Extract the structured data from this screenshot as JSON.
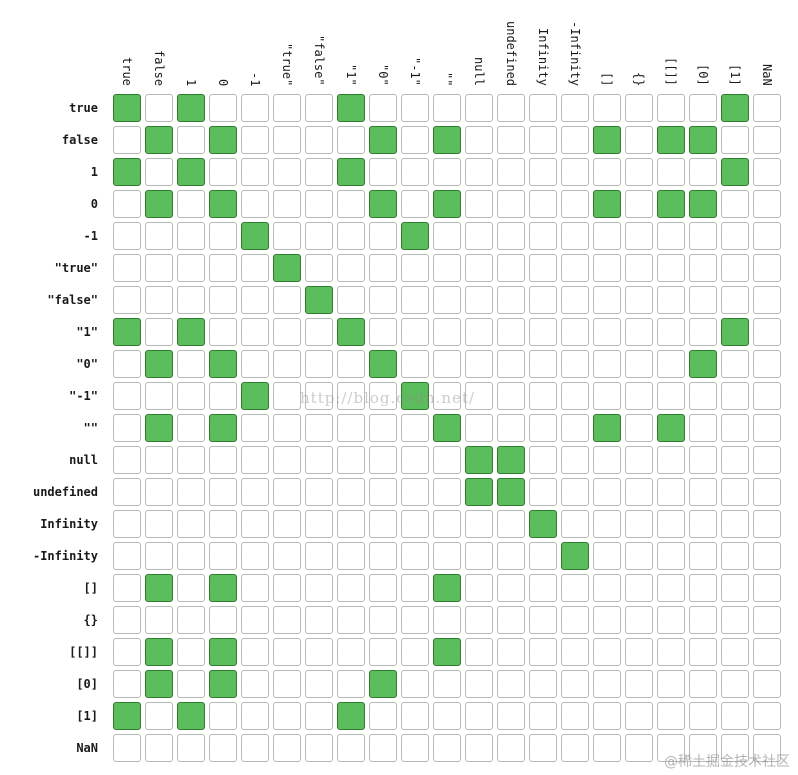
{
  "chart_data": {
    "type": "heatmap",
    "columns": [
      "true",
      "false",
      "1",
      "0",
      "-1",
      "\"true\"",
      "\"false\"",
      "\"1\"",
      "\"0\"",
      "\"-1\"",
      "\"\"",
      "null",
      "undefined",
      "Infinity",
      "-Infinity",
      "[]",
      "{}",
      "[[]]",
      "[0]",
      "[1]",
      "NaN"
    ],
    "rows": [
      "true",
      "false",
      "1",
      "0",
      "-1",
      "\"true\"",
      "\"false\"",
      "\"1\"",
      "\"0\"",
      "\"-1\"",
      "\"\"",
      "null",
      "undefined",
      "Infinity",
      "-Infinity",
      "[]",
      "{}",
      "[[]]",
      "[0]",
      "[1]",
      "NaN"
    ],
    "matrix": [
      [
        1,
        0,
        1,
        0,
        0,
        0,
        0,
        1,
        0,
        0,
        0,
        0,
        0,
        0,
        0,
        0,
        0,
        0,
        0,
        1,
        0
      ],
      [
        0,
        1,
        0,
        1,
        0,
        0,
        0,
        0,
        1,
        0,
        1,
        0,
        0,
        0,
        0,
        1,
        0,
        1,
        1,
        0,
        0
      ],
      [
        1,
        0,
        1,
        0,
        0,
        0,
        0,
        1,
        0,
        0,
        0,
        0,
        0,
        0,
        0,
        0,
        0,
        0,
        0,
        1,
        0
      ],
      [
        0,
        1,
        0,
        1,
        0,
        0,
        0,
        0,
        1,
        0,
        1,
        0,
        0,
        0,
        0,
        1,
        0,
        1,
        1,
        0,
        0
      ],
      [
        0,
        0,
        0,
        0,
        1,
        0,
        0,
        0,
        0,
        1,
        0,
        0,
        0,
        0,
        0,
        0,
        0,
        0,
        0,
        0,
        0
      ],
      [
        0,
        0,
        0,
        0,
        0,
        1,
        0,
        0,
        0,
        0,
        0,
        0,
        0,
        0,
        0,
        0,
        0,
        0,
        0,
        0,
        0
      ],
      [
        0,
        0,
        0,
        0,
        0,
        0,
        1,
        0,
        0,
        0,
        0,
        0,
        0,
        0,
        0,
        0,
        0,
        0,
        0,
        0,
        0
      ],
      [
        1,
        0,
        1,
        0,
        0,
        0,
        0,
        1,
        0,
        0,
        0,
        0,
        0,
        0,
        0,
        0,
        0,
        0,
        0,
        1,
        0
      ],
      [
        0,
        1,
        0,
        1,
        0,
        0,
        0,
        0,
        1,
        0,
        0,
        0,
        0,
        0,
        0,
        0,
        0,
        0,
        1,
        0,
        0
      ],
      [
        0,
        0,
        0,
        0,
        1,
        0,
        0,
        0,
        0,
        1,
        0,
        0,
        0,
        0,
        0,
        0,
        0,
        0,
        0,
        0,
        0
      ],
      [
        0,
        1,
        0,
        1,
        0,
        0,
        0,
        0,
        0,
        0,
        1,
        0,
        0,
        0,
        0,
        1,
        0,
        1,
        0,
        0,
        0
      ],
      [
        0,
        0,
        0,
        0,
        0,
        0,
        0,
        0,
        0,
        0,
        0,
        1,
        1,
        0,
        0,
        0,
        0,
        0,
        0,
        0,
        0
      ],
      [
        0,
        0,
        0,
        0,
        0,
        0,
        0,
        0,
        0,
        0,
        0,
        1,
        1,
        0,
        0,
        0,
        0,
        0,
        0,
        0,
        0
      ],
      [
        0,
        0,
        0,
        0,
        0,
        0,
        0,
        0,
        0,
        0,
        0,
        0,
        0,
        1,
        0,
        0,
        0,
        0,
        0,
        0,
        0
      ],
      [
        0,
        0,
        0,
        0,
        0,
        0,
        0,
        0,
        0,
        0,
        0,
        0,
        0,
        0,
        1,
        0,
        0,
        0,
        0,
        0,
        0
      ],
      [
        0,
        1,
        0,
        1,
        0,
        0,
        0,
        0,
        0,
        0,
        1,
        0,
        0,
        0,
        0,
        0,
        0,
        0,
        0,
        0,
        0
      ],
      [
        0,
        0,
        0,
        0,
        0,
        0,
        0,
        0,
        0,
        0,
        0,
        0,
        0,
        0,
        0,
        0,
        0,
        0,
        0,
        0,
        0
      ],
      [
        0,
        1,
        0,
        1,
        0,
        0,
        0,
        0,
        0,
        0,
        1,
        0,
        0,
        0,
        0,
        0,
        0,
        0,
        0,
        0,
        0
      ],
      [
        0,
        1,
        0,
        1,
        0,
        0,
        0,
        0,
        1,
        0,
        0,
        0,
        0,
        0,
        0,
        0,
        0,
        0,
        0,
        0,
        0
      ],
      [
        1,
        0,
        1,
        0,
        0,
        0,
        0,
        1,
        0,
        0,
        0,
        0,
        0,
        0,
        0,
        0,
        0,
        0,
        0,
        0,
        0
      ],
      [
        0,
        0,
        0,
        0,
        0,
        0,
        0,
        0,
        0,
        0,
        0,
        0,
        0,
        0,
        0,
        0,
        0,
        0,
        0,
        0,
        0
      ]
    ],
    "colors": {
      "on_fill": "#5cbd5c",
      "on_border": "#2e7d2e",
      "off_fill": "#ffffff",
      "off_border": "#b8b8b8"
    }
  },
  "watermarks": {
    "url": "http://blog.csdn.net/",
    "brand": "@稀土掘金技术社区"
  }
}
